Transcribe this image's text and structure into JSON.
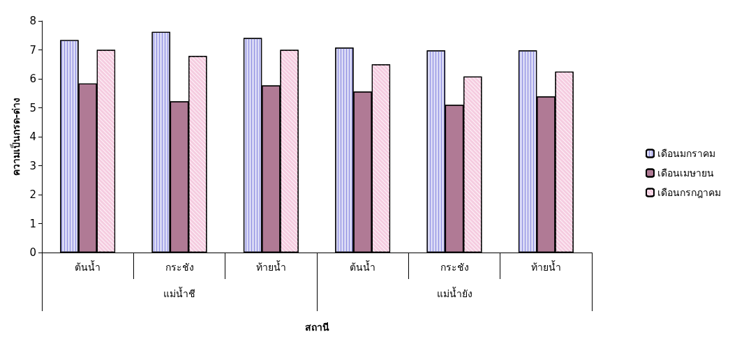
{
  "chart_data": {
    "type": "bar",
    "xlabel": "สถานี",
    "ylabel": "ความเป็นกรด-ด่าง",
    "categories": [
      "ต้นน้ำ",
      "กระชัง",
      "ท้ายน้ำ",
      "ต้นน้ำ",
      "กระชัง",
      "ท้ายน้ำ"
    ],
    "annotations": [
      "แม่น้ำชี",
      "แม่น้ำยัง"
    ],
    "series": [
      {
        "name": "เดือนมกราคม",
        "color": "#d9d9f5",
        "values": [
          7.34,
          7.62,
          7.41,
          7.08,
          6.98,
          6.98
        ]
      },
      {
        "name": "เดือนเมษายน",
        "color": "#b07a95",
        "values": [
          5.84,
          5.22,
          5.77,
          5.56,
          5.1,
          5.39
        ]
      },
      {
        "name": "เดือนกรกฎาคม",
        "color": "#f5cce0",
        "values": [
          7.0,
          6.79,
          7.0,
          6.5,
          6.08,
          6.25
        ]
      }
    ],
    "ylim": [
      0,
      8
    ],
    "yticks": [
      0,
      1,
      2,
      3,
      4,
      5,
      6,
      7,
      8
    ],
    "grid": false,
    "legend": "right"
  }
}
